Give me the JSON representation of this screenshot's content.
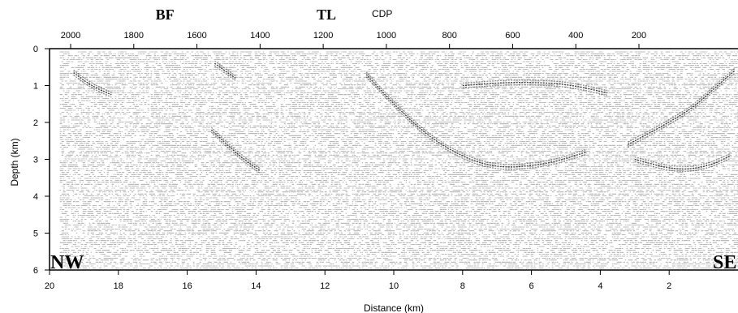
{
  "chart_data": {
    "type": "heatmap",
    "top_axis": {
      "title": "CDP",
      "ticks": [
        "2000",
        "1800",
        "1600",
        "1400",
        "1200",
        "1000",
        "800",
        "600",
        "400",
        "200"
      ],
      "range": [
        2100,
        100
      ]
    },
    "markers": [
      {
        "label": "BF",
        "cdp": 1700
      },
      {
        "label": "TL",
        "cdp": 1190
      }
    ],
    "bottom_axis": {
      "title": "Distance (km)",
      "ticks": [
        "20",
        "18",
        "16",
        "14",
        "12",
        "10",
        "8",
        "6",
        "4",
        "2"
      ],
      "range": [
        20,
        0
      ]
    },
    "left_axis": {
      "title": "Depth (km)",
      "ticks": [
        "0",
        "1",
        "2",
        "3",
        "4",
        "5",
        "6"
      ],
      "range": [
        0,
        6
      ]
    },
    "corner_labels": {
      "left": "NW",
      "right": "SE"
    },
    "reflectors": [
      {
        "name": "reflector-bowl",
        "points": [
          [
            10.8,
            0.7
          ],
          [
            9.8,
            1.7
          ],
          [
            8.7,
            2.6
          ],
          [
            7.2,
            3.25
          ],
          [
            5.6,
            3.15
          ],
          [
            4.4,
            2.8
          ]
        ]
      },
      {
        "name": "reflector-east-dipping",
        "points": [
          [
            3.2,
            2.6
          ],
          [
            2.2,
            2.1
          ],
          [
            1.3,
            1.6
          ],
          [
            0.6,
            1.0
          ],
          [
            0.1,
            0.6
          ]
        ]
      },
      {
        "name": "reflector-west-shallow",
        "points": [
          [
            19.3,
            0.65
          ],
          [
            18.8,
            1.0
          ],
          [
            18.2,
            1.25
          ]
        ]
      },
      {
        "name": "reflector-bf",
        "points": [
          [
            15.2,
            0.4
          ],
          [
            14.6,
            0.8
          ]
        ]
      },
      {
        "name": "reflector-mid",
        "points": [
          [
            15.3,
            2.2
          ],
          [
            14.5,
            2.9
          ],
          [
            13.9,
            3.3
          ]
        ]
      },
      {
        "name": "reflector-east-deep",
        "points": [
          [
            3.0,
            3.0
          ],
          [
            1.8,
            3.3
          ],
          [
            0.9,
            3.2
          ],
          [
            0.2,
            2.9
          ]
        ]
      },
      {
        "name": "reflector-shallow-center",
        "points": [
          [
            8.0,
            1.0
          ],
          [
            6.5,
            0.9
          ],
          [
            5.0,
            0.95
          ],
          [
            3.8,
            1.2
          ]
        ]
      }
    ]
  }
}
